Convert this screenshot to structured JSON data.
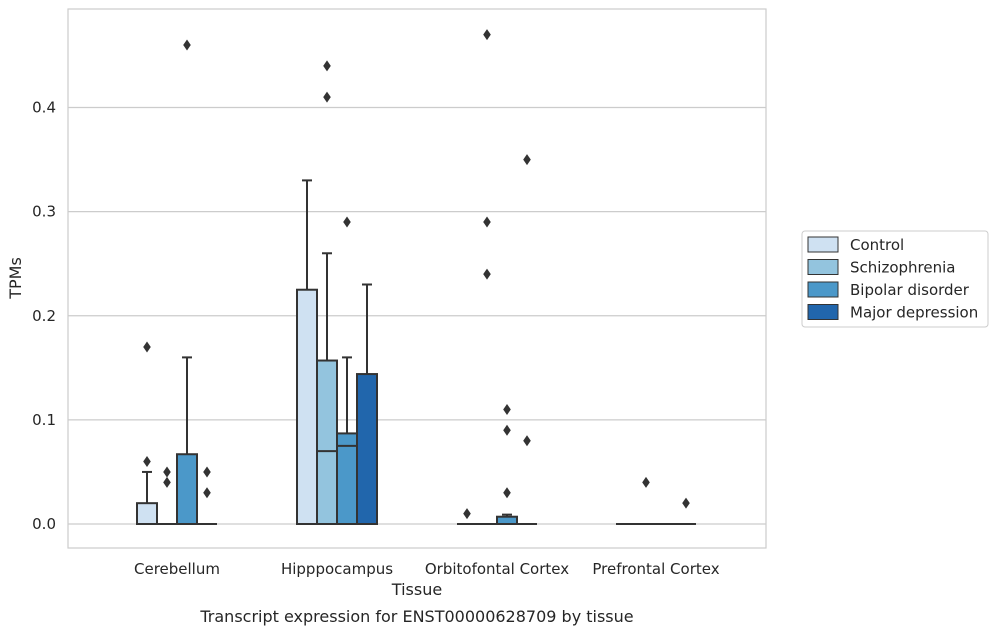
{
  "caption": "Transcript expression for ENST00000628709 by tissue",
  "chart_data": {
    "type": "box",
    "xlabel": "Tissue",
    "ylabel": "TPMs",
    "ylim": [
      -0.023,
      0.495
    ],
    "yticks": [
      0.0,
      0.1,
      0.2,
      0.3,
      0.4
    ],
    "ytick_labels": [
      "0.0",
      "0.1",
      "0.2",
      "0.3",
      "0.4"
    ],
    "grid": "horizontal",
    "legend_position": "right",
    "categories": [
      "Cerebellum",
      "Hipppocampus",
      "Orbitofontal Cortex",
      "Prefrontal Cortex"
    ],
    "series": [
      {
        "name": "Control",
        "color": "#cfe1f2",
        "boxes": [
          {
            "q1": 0.0,
            "median": 0.0,
            "q3": 0.02,
            "whisker_low": 0.0,
            "whisker_high": 0.05,
            "outliers": [
              0.06,
              0.17
            ]
          },
          {
            "q1": 0.0,
            "median": 0.0,
            "q3": 0.225,
            "whisker_low": 0.0,
            "whisker_high": 0.33,
            "outliers": []
          },
          {
            "q1": 0.0,
            "median": 0.0,
            "q3": 0.0,
            "whisker_low": 0.0,
            "whisker_high": 0.0,
            "outliers": [
              0.01
            ]
          },
          {
            "q1": 0.0,
            "median": 0.0,
            "q3": 0.0,
            "whisker_low": 0.0,
            "whisker_high": 0.0,
            "outliers": []
          }
        ]
      },
      {
        "name": "Schizophrenia",
        "color": "#93c4de",
        "boxes": [
          {
            "q1": 0.0,
            "median": 0.0,
            "q3": 0.0,
            "whisker_low": 0.0,
            "whisker_high": 0.0,
            "outliers": [
              0.04,
              0.05
            ]
          },
          {
            "q1": 0.0,
            "median": 0.07,
            "q3": 0.157,
            "whisker_low": 0.0,
            "whisker_high": 0.26,
            "outliers": [
              0.41,
              0.44
            ]
          },
          {
            "q1": 0.0,
            "median": 0.0,
            "q3": 0.0,
            "whisker_low": 0.0,
            "whisker_high": 0.0,
            "outliers": [
              0.24,
              0.29,
              0.47
            ]
          },
          {
            "q1": 0.0,
            "median": 0.0,
            "q3": 0.0,
            "whisker_low": 0.0,
            "whisker_high": 0.0,
            "outliers": [
              0.04
            ]
          }
        ]
      },
      {
        "name": "Bipolar disorder",
        "color": "#4b98c9",
        "boxes": [
          {
            "q1": 0.0,
            "median": 0.0,
            "q3": 0.067,
            "whisker_low": 0.0,
            "whisker_high": 0.16,
            "outliers": [
              0.46
            ]
          },
          {
            "q1": 0.0,
            "median": 0.075,
            "q3": 0.087,
            "whisker_low": 0.0,
            "whisker_high": 0.16,
            "outliers": [
              0.29
            ]
          },
          {
            "q1": 0.0,
            "median": 0.0,
            "q3": 0.007,
            "whisker_low": 0.0,
            "whisker_high": 0.009,
            "outliers": [
              0.03,
              0.09,
              0.11
            ]
          },
          {
            "q1": 0.0,
            "median": 0.0,
            "q3": 0.0,
            "whisker_low": 0.0,
            "whisker_high": 0.0,
            "outliers": []
          }
        ]
      },
      {
        "name": "Major depression",
        "color": "#2166ac",
        "boxes": [
          {
            "q1": 0.0,
            "median": 0.0,
            "q3": 0.0,
            "whisker_low": 0.0,
            "whisker_high": 0.0,
            "outliers": [
              0.03,
              0.05
            ]
          },
          {
            "q1": 0.0,
            "median": 0.0,
            "q3": 0.144,
            "whisker_low": 0.0,
            "whisker_high": 0.23,
            "outliers": []
          },
          {
            "q1": 0.0,
            "median": 0.0,
            "q3": 0.0,
            "whisker_low": 0.0,
            "whisker_high": 0.0,
            "outliers": [
              0.08,
              0.35
            ]
          },
          {
            "q1": 0.0,
            "median": 0.0,
            "q3": 0.0,
            "whisker_low": 0.0,
            "whisker_high": 0.0,
            "outliers": [
              0.02
            ]
          }
        ]
      }
    ],
    "edge_color": "#333333",
    "grid_color": "#cccccc",
    "frame_color": "#cccccc"
  }
}
